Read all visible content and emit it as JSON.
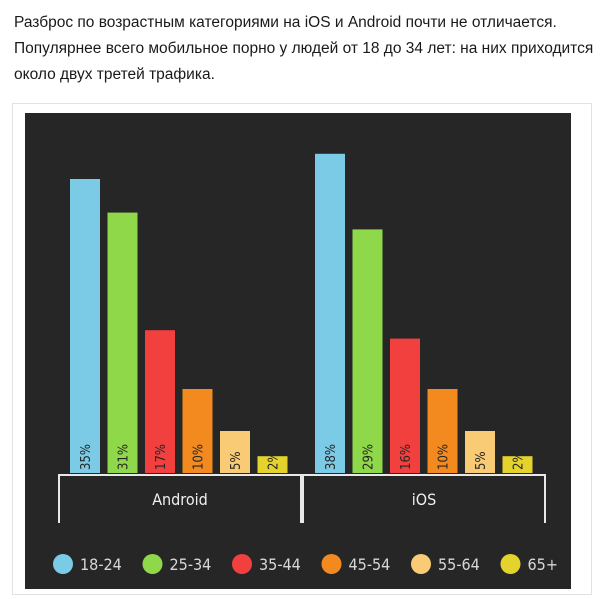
{
  "intro_text": [
    "Разброс по возрастным категориями на iOS и Android почти не отличается.",
    "Популярнее всего мобильное порно у людей от 18 до 34 лет: на них приходится",
    "около двух третей трафика."
  ],
  "chart_data": {
    "type": "bar",
    "title": "",
    "xlabel": "",
    "ylabel": "",
    "categories": [
      "Android",
      "iOS"
    ],
    "series": [
      {
        "name": "18-24",
        "color": "#7ccbe6",
        "values": [
          35,
          38
        ]
      },
      {
        "name": "25-34",
        "color": "#8ed84a",
        "values": [
          31,
          29
        ]
      },
      {
        "name": "35-44",
        "color": "#f2403f",
        "values": [
          17,
          16
        ]
      },
      {
        "name": "45-54",
        "color": "#f38a1f",
        "values": [
          10,
          10
        ]
      },
      {
        "name": "55-64",
        "color": "#f8cb74",
        "values": [
          5,
          5
        ]
      },
      {
        "name": "65+",
        "color": "#e4d32c",
        "values": [
          2,
          2
        ]
      }
    ],
    "value_suffix": "%",
    "ylim": [
      0,
      40
    ],
    "grid": false,
    "legend": "bottom",
    "background": "#262626"
  }
}
